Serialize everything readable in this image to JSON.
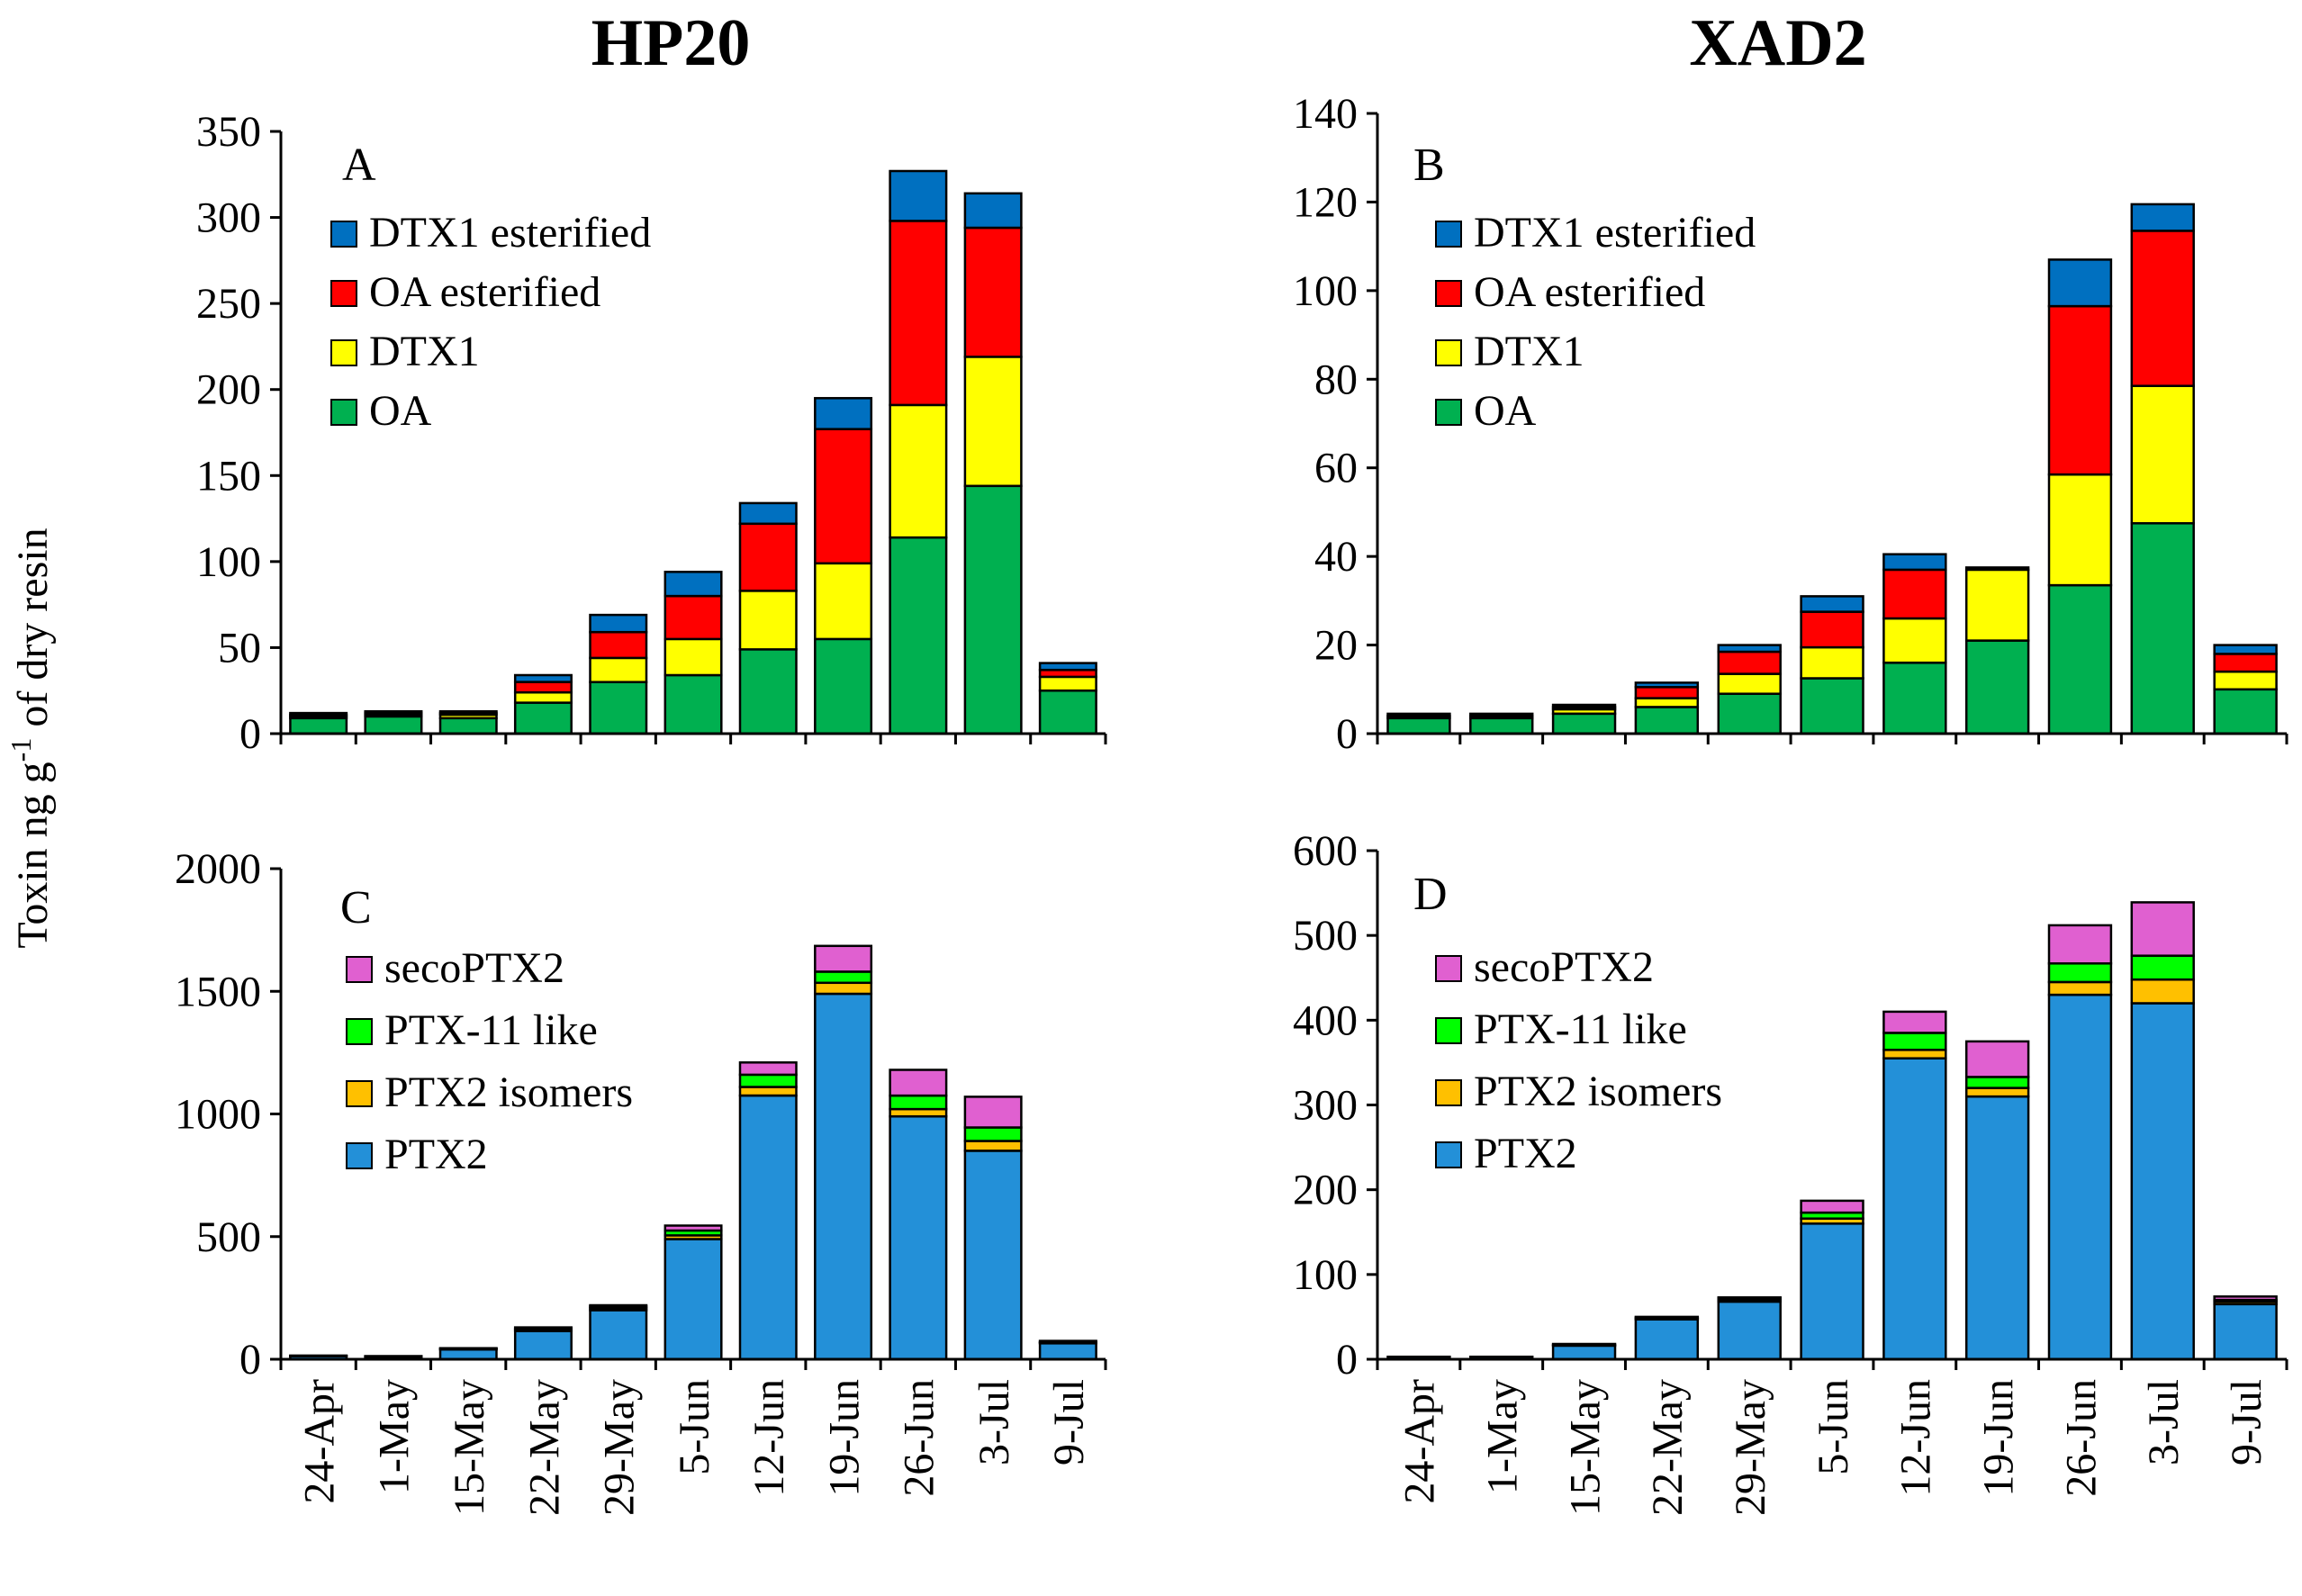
{
  "figure": {
    "y_axis_label": "Toxin ng g",
    "y_axis_label_sup": "-1",
    "y_axis_label_tail": " of dry resin",
    "column_titles": [
      "HP20",
      "XAD2"
    ]
  },
  "colors": {
    "OA": "#00b050",
    "DTX1": "#ffff00",
    "OA esterified": "#ff0000",
    "DTX1 esterified": "#0070c0",
    "PTX2": "#2390d8",
    "PTX2 isomers": "#ffc000",
    "PTX-11 like": "#00ff00",
    "secoPTX2": "#e060d0"
  },
  "chart_data": [
    {
      "panel": "A",
      "type": "bar",
      "stacked": true,
      "title": "HP20",
      "ylabel": "Toxin ng g-1 of dry resin",
      "ylim": [
        0,
        350
      ],
      "yticks": [
        0,
        50,
        100,
        150,
        200,
        250,
        300,
        350
      ],
      "categories": [
        "24-Apr",
        "1-May",
        "15-May",
        "22-May",
        "29-May",
        "5-Jun",
        "12-Jun",
        "19-Jun",
        "26-Jun",
        "3-Jul",
        "9-Jul"
      ],
      "legend": [
        "DTX1 esterified",
        "OA esterified",
        "DTX1",
        "OA"
      ],
      "series": [
        {
          "name": "OA",
          "values": [
            9,
            10,
            9,
            18,
            30,
            34,
            49,
            55,
            114,
            144,
            25
          ]
        },
        {
          "name": "DTX1",
          "values": [
            1,
            1,
            2,
            6,
            14,
            21,
            34,
            44,
            77,
            75,
            8
          ]
        },
        {
          "name": "OA esterified",
          "values": [
            1,
            1,
            1,
            6,
            15,
            25,
            39,
            78,
            107,
            75,
            4
          ]
        },
        {
          "name": "DTX1 esterified",
          "values": [
            1,
            1,
            1,
            4,
            10,
            14,
            12,
            18,
            29,
            20,
            4
          ]
        }
      ]
    },
    {
      "panel": "B",
      "type": "bar",
      "stacked": true,
      "title": "XAD2",
      "ylim": [
        0,
        140
      ],
      "yticks": [
        0,
        20,
        40,
        60,
        80,
        100,
        120,
        140
      ],
      "categories": [
        "24-Apr",
        "1-May",
        "15-May",
        "22-May",
        "29-May",
        "5-Jun",
        "12-Jun",
        "19-Jun",
        "26-Jun",
        "3-Jul",
        "9-Jul"
      ],
      "legend": [
        "DTX1 esterified",
        "OA esterified",
        "DTX1",
        "OA"
      ],
      "series": [
        {
          "name": "OA",
          "values": [
            3.5,
            3.5,
            4.5,
            6,
            9,
            12.5,
            16,
            21,
            33.5,
            47.5,
            10
          ]
        },
        {
          "name": "DTX1",
          "values": [
            0.5,
            0.5,
            1,
            2,
            4.5,
            7,
            10,
            16,
            25,
            31,
            4
          ]
        },
        {
          "name": "OA esterified",
          "values": [
            0,
            0,
            0.5,
            2.5,
            5,
            8,
            11,
            0,
            38,
            35,
            4
          ]
        },
        {
          "name": "DTX1 esterified",
          "values": [
            0.5,
            0.5,
            0.5,
            1,
            1.5,
            3.5,
            3.5,
            0.5,
            10.5,
            6,
            2
          ]
        }
      ]
    },
    {
      "panel": "C",
      "type": "bar",
      "stacked": true,
      "ylim": [
        0,
        2000
      ],
      "yticks": [
        0,
        500,
        1000,
        1500,
        2000
      ],
      "categories": [
        "24-Apr",
        "1-May",
        "15-May",
        "22-May",
        "29-May",
        "5-Jun",
        "12-Jun",
        "19-Jun",
        "26-Jun",
        "3-Jul",
        "9-Jul"
      ],
      "legend": [
        "secoPTX2",
        "PTX-11 like",
        "PTX2 isomers",
        "PTX2"
      ],
      "series": [
        {
          "name": "PTX2",
          "values": [
            12,
            10,
            40,
            115,
            200,
            490,
            1075,
            1490,
            990,
            850,
            65
          ]
        },
        {
          "name": "PTX2 isomers",
          "values": [
            1,
            1,
            2,
            5,
            8,
            15,
            35,
            45,
            30,
            40,
            3
          ]
        },
        {
          "name": "PTX-11 like",
          "values": [
            1,
            1,
            2,
            5,
            7,
            20,
            50,
            45,
            55,
            55,
            3
          ]
        },
        {
          "name": "secoPTX2",
          "values": [
            1,
            1,
            1,
            5,
            5,
            20,
            50,
            105,
            105,
            125,
            4
          ]
        }
      ]
    },
    {
      "panel": "D",
      "type": "bar",
      "stacked": true,
      "ylim": [
        0,
        600
      ],
      "yticks": [
        0,
        100,
        200,
        300,
        400,
        500,
        600
      ],
      "categories": [
        "24-Apr",
        "1-May",
        "15-May",
        "22-May",
        "29-May",
        "5-Jun",
        "12-Jun",
        "19-Jun",
        "26-Jun",
        "3-Jul",
        "9-Jul"
      ],
      "legend": [
        "secoPTX2",
        "PTX-11 like",
        "PTX2 isomers",
        "PTX2"
      ],
      "series": [
        {
          "name": "PTX2",
          "values": [
            3,
            3,
            16,
            47,
            68,
            160,
            355,
            310,
            430,
            420,
            65
          ]
        },
        {
          "name": "PTX2 isomers",
          "values": [
            0,
            0,
            1,
            1,
            2,
            6,
            10,
            10,
            15,
            28,
            3
          ]
        },
        {
          "name": "PTX-11 like",
          "values": [
            0,
            0,
            1,
            1,
            2,
            7,
            20,
            13,
            22,
            28,
            2
          ]
        },
        {
          "name": "secoPTX2",
          "values": [
            0,
            0,
            0,
            1,
            1,
            14,
            25,
            42,
            45,
            63,
            4
          ]
        }
      ]
    }
  ]
}
